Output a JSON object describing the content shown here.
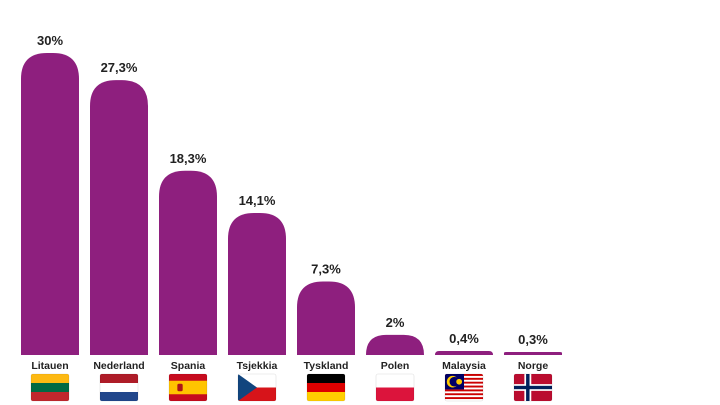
{
  "chart_data": {
    "type": "bar",
    "title": "",
    "xlabel": "",
    "ylabel": "",
    "ylim": [
      0,
      30
    ],
    "grid": false,
    "categories": [
      "Litauen",
      "Nederland",
      "Spania",
      "Tsjekkia",
      "Tyskland",
      "Polen",
      "Malaysia",
      "Norge"
    ],
    "values": [
      30,
      27.3,
      18.3,
      14.1,
      7.3,
      2,
      0.4,
      0.3
    ],
    "value_labels": [
      "30%",
      "27,3%",
      "18,3%",
      "14,1%",
      "7,3%",
      "2%",
      "0,4%",
      "0,3%"
    ],
    "flags": [
      "lithuania-flag",
      "netherlands-flag",
      "spain-flag",
      "czech-flag",
      "germany-flag",
      "poland-flag",
      "malaysia-flag",
      "norway-flag"
    ]
  },
  "colors": {
    "bar": "#8e1f7e",
    "text": "#222222"
  }
}
